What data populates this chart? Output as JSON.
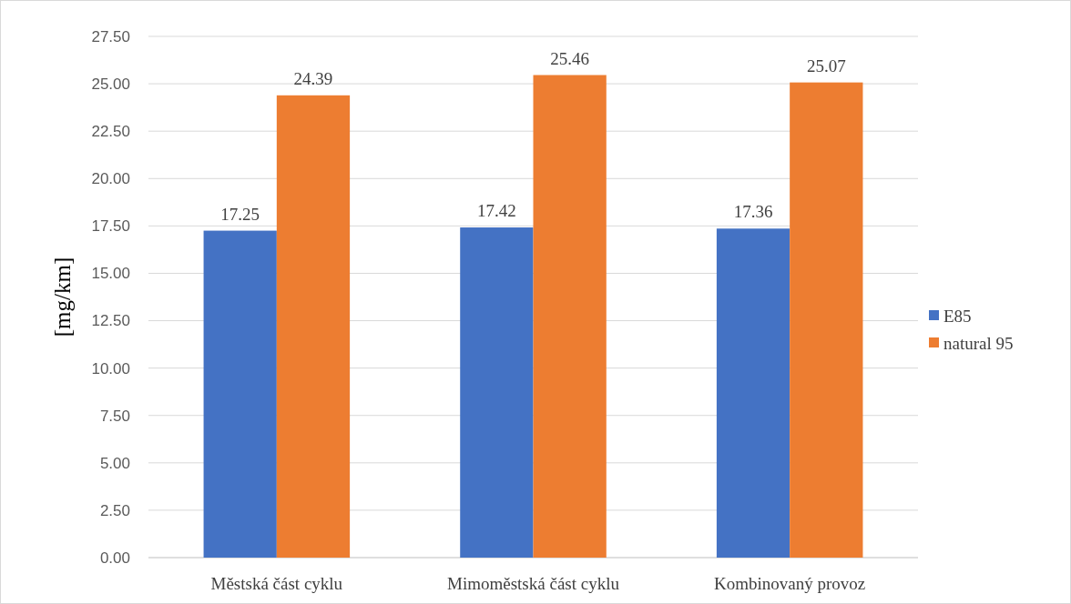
{
  "chart_data": {
    "type": "bar",
    "ylabel": "[mg/km]",
    "categories": [
      "Městská část cyklu",
      "Mimoměstská část cyklu",
      "Kombinovaný provoz"
    ],
    "series": [
      {
        "name": "E85",
        "color": "#4472c4",
        "values": [
          17.25,
          17.42,
          17.36
        ]
      },
      {
        "name": "natural 95",
        "color": "#ed7d31",
        "values": [
          24.39,
          25.46,
          25.07
        ]
      }
    ],
    "ylim": [
      0,
      27.5
    ],
    "yticks": [
      {
        "value": 0,
        "label": "0.00"
      },
      {
        "value": 2.5,
        "label": "2.50"
      },
      {
        "value": 5,
        "label": "5.00"
      },
      {
        "value": 7.5,
        "label": "7.50"
      },
      {
        "value": 10,
        "label": "10.00"
      },
      {
        "value": 12.5,
        "label": "12.50"
      },
      {
        "value": 15,
        "label": "15.00"
      },
      {
        "value": 17.5,
        "label": "17.50"
      },
      {
        "value": 20,
        "label": "20.00"
      },
      {
        "value": 22.5,
        "label": "22.50"
      },
      {
        "value": 25,
        "label": "25.00"
      },
      {
        "value": 27.5,
        "label": "27.50"
      }
    ],
    "grid": "y",
    "legend": "right",
    "data_labels": true
  }
}
